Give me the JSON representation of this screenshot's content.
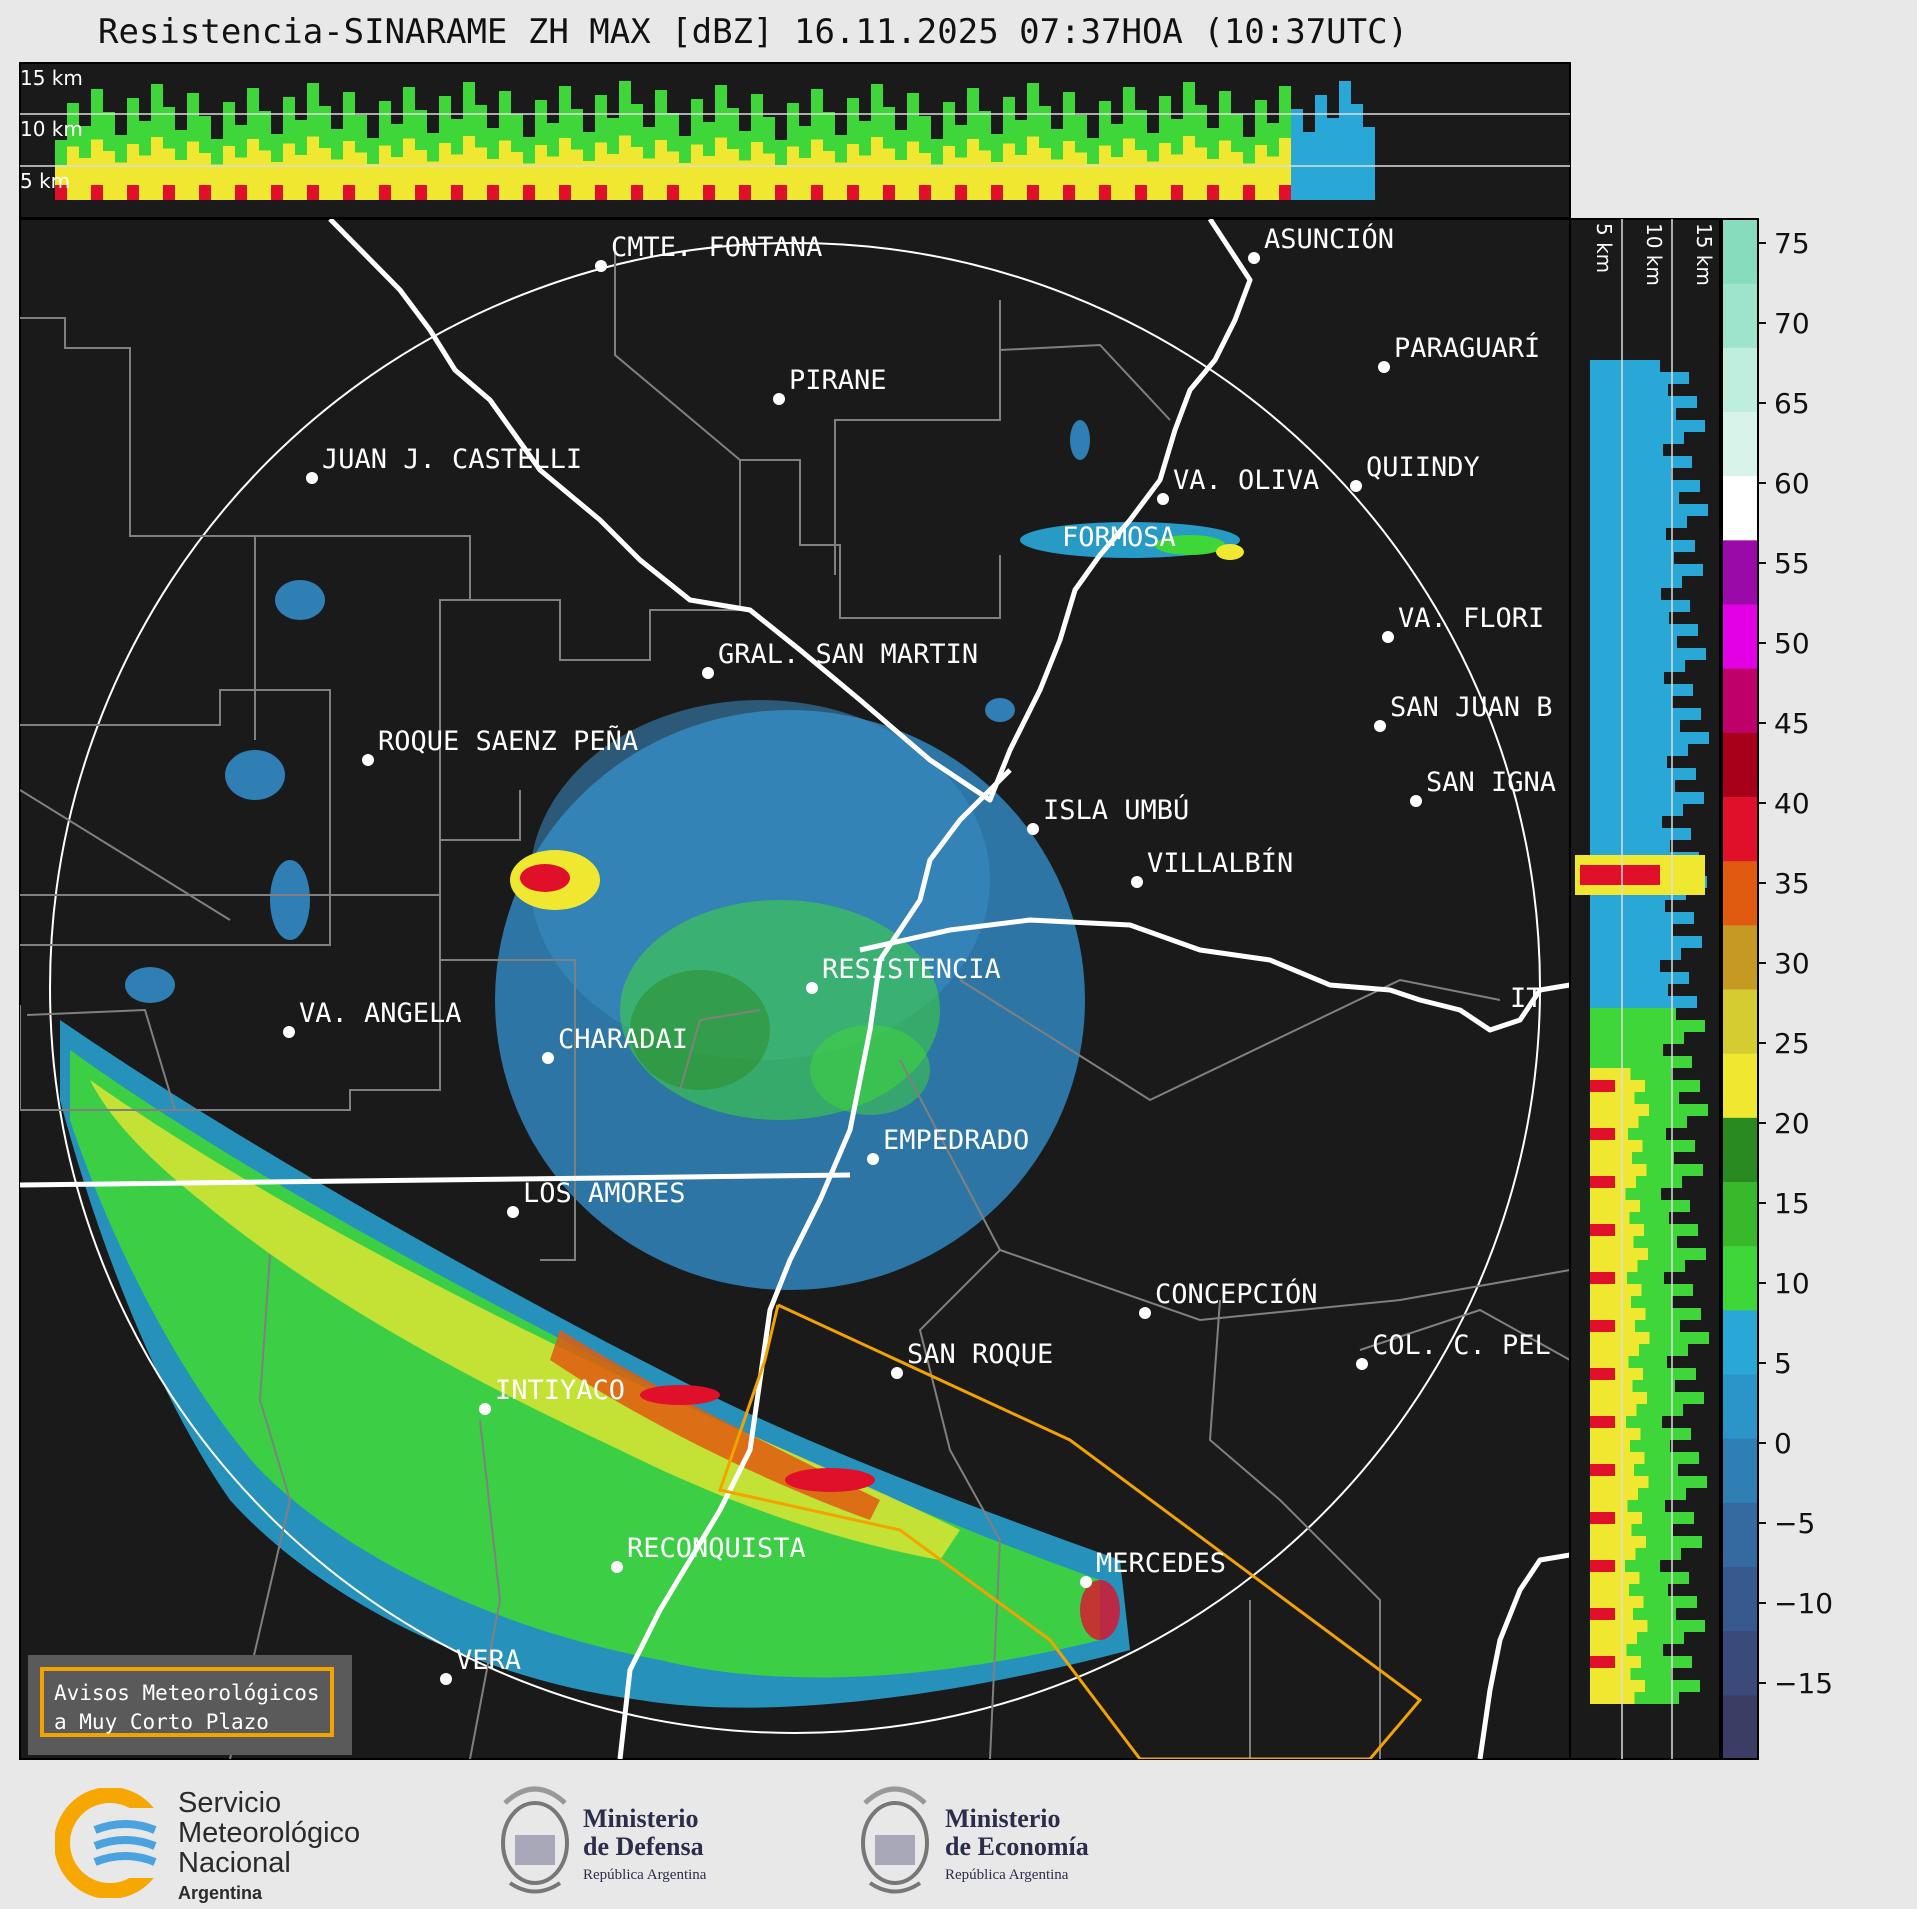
{
  "header": {
    "title": "Resistencia-SINARAME ZH MAX [dBZ] 16.11.2025 07:37HOA (10:37UTC)"
  },
  "top_section": {
    "altitude_labels": [
      "15 km",
      "10 km",
      "5 km"
    ]
  },
  "side_section": {
    "altitude_labels": [
      "5 km",
      "10 km",
      "15 km"
    ]
  },
  "map": {
    "cities": [
      {
        "name": "CMTE. FONTANA"
      },
      {
        "name": "ASUNCIÓN"
      },
      {
        "name": "PIRANE"
      },
      {
        "name": "PARAGUARÍ"
      },
      {
        "name": "JUAN J. CASTELLI"
      },
      {
        "name": "VA. OLIVA"
      },
      {
        "name": "QUIINDY"
      },
      {
        "name": "FORMOSA"
      },
      {
        "name": "VA. FLORI"
      },
      {
        "name": "GRAL. SAN MARTIN"
      },
      {
        "name": "SAN JUAN B"
      },
      {
        "name": "ROQUE SAENZ PEÑA"
      },
      {
        "name": "SAN IGNA"
      },
      {
        "name": "ISLA UMBÚ"
      },
      {
        "name": "VILLALBÍN"
      },
      {
        "name": "RESISTENCIA"
      },
      {
        "name": "VA. ANGELA"
      },
      {
        "name": "CHARADAI"
      },
      {
        "name": "IT"
      },
      {
        "name": "EMPEDRADO"
      },
      {
        "name": "LOS AMORES"
      },
      {
        "name": "CONCEPCIÓN"
      },
      {
        "name": "SAN ROQUE"
      },
      {
        "name": "COL. C. PEL"
      },
      {
        "name": "INTIYACO"
      },
      {
        "name": "RECONQUISTA"
      },
      {
        "name": "MERCEDES"
      },
      {
        "name": "VERA"
      }
    ]
  },
  "colorbar": {
    "ticks": [
      "75",
      "70",
      "65",
      "60",
      "55",
      "50",
      "45",
      "40",
      "35",
      "30",
      "25",
      "20",
      "15",
      "10",
      "5",
      "0",
      "−5",
      "−10",
      "−15"
    ],
    "stops": [
      "#3b3d64",
      "#3a4a7a",
      "#37598e",
      "#356aa0",
      "#2f7fb4",
      "#2b95c8",
      "#29a8d8",
      "#3fd63a",
      "#39b82c",
      "#2a8a22",
      "#f0e830",
      "#d4cc30",
      "#c69a22",
      "#e05a10",
      "#e0102a",
      "#a8001a",
      "#c0006a",
      "#e400e4",
      "#9a0aa8",
      "#ffffff",
      "#d8f4ea",
      "#bfeedf",
      "#9ee4cc",
      "#86dcbc"
    ]
  },
  "warning": {
    "line1": "Avisos Meteorológicos",
    "line2": "a Muy Corto Plazo"
  },
  "footer": {
    "smn_line1": "Servicio",
    "smn_line2": "Meteorológico",
    "smn_line3": "Nacional",
    "smn_line4": "Argentina",
    "defensa_line1": "Ministerio",
    "defensa_line2": "de Defensa",
    "defensa_line3": "República Argentina",
    "economia_line1": "Ministerio",
    "economia_line2": "de Economía",
    "economia_line3": "República Argentina"
  },
  "colors": {
    "background": "#1a1a1a",
    "river": "#ffffff",
    "borders": "#808080",
    "warning_polygon": "#f3a300"
  }
}
